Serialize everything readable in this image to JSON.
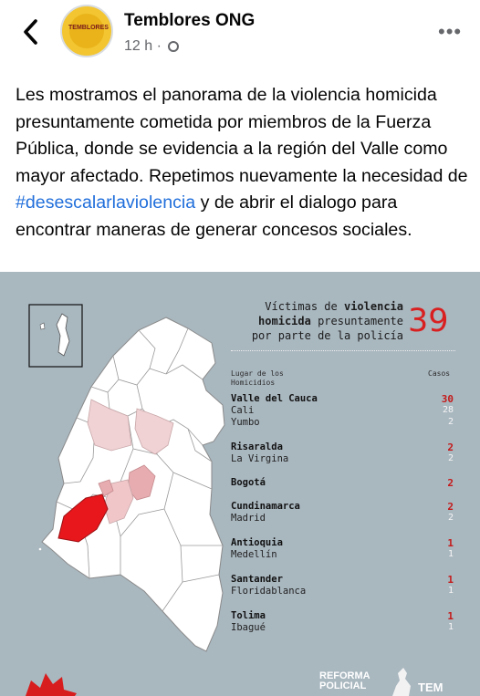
{
  "header": {
    "back_icon": "chevron-left-icon",
    "page_name": "Temblores ONG",
    "time": "12 h",
    "separator": "·",
    "privacy_icon": "globe-icon",
    "more_icon": "more-horizontal-icon",
    "avatar_text": "TEMBLORES"
  },
  "post": {
    "text_before": "Les mostramos el panorama de la violencia homicida presuntamente cometida por miembros de la Fuerza Pública, donde se evidencia a la región del Valle como mayor afectado. Repetimos nuevamente la necesidad de ",
    "hashtag": "#desescalarlaviolencia",
    "text_after": " y de abrir el dialogo para encontrar maneras de generar concesos sociales."
  },
  "infographic": {
    "title_line1_pre": "Víctimas de ",
    "title_line1_bold": "violencia",
    "title_line2_bold": "homicida",
    "title_line2_post": " presuntamente",
    "title_line3": "por parte de la policía",
    "total": "39",
    "col_place": "Lugar de los Homicidios",
    "col_cases": "Casos",
    "colors": {
      "background": "#a9b7bf",
      "accent": "#d92020",
      "map_fill": "#ffffff"
    },
    "regions": [
      {
        "name": "Valle del Cauca",
        "count": "30",
        "cities": [
          {
            "name": "Cali",
            "count": "28"
          },
          {
            "name": "Yumbo",
            "count": "2"
          }
        ]
      },
      {
        "name": "Risaralda",
        "count": "2",
        "cities": [
          {
            "name": "La Virgina",
            "count": "2"
          }
        ]
      },
      {
        "name": "Bogotá",
        "count": "2",
        "cities": []
      },
      {
        "name": "Cundinamarca",
        "count": "2",
        "cities": [
          {
            "name": "Madrid",
            "count": "2"
          }
        ]
      },
      {
        "name": "Antioquia",
        "count": "1",
        "cities": [
          {
            "name": "Medellín",
            "count": "1"
          }
        ]
      },
      {
        "name": "Santander",
        "count": "1",
        "cities": [
          {
            "name": "Floridablanca",
            "count": "1"
          }
        ]
      },
      {
        "name": "Tolima",
        "count": "1",
        "cities": [
          {
            "name": "Ibagué",
            "count": "1"
          }
        ]
      }
    ],
    "logo_reforma_line1": "REFORMA",
    "logo_reforma_line2": "POLICIAL",
    "logo_tem": "TEM"
  }
}
